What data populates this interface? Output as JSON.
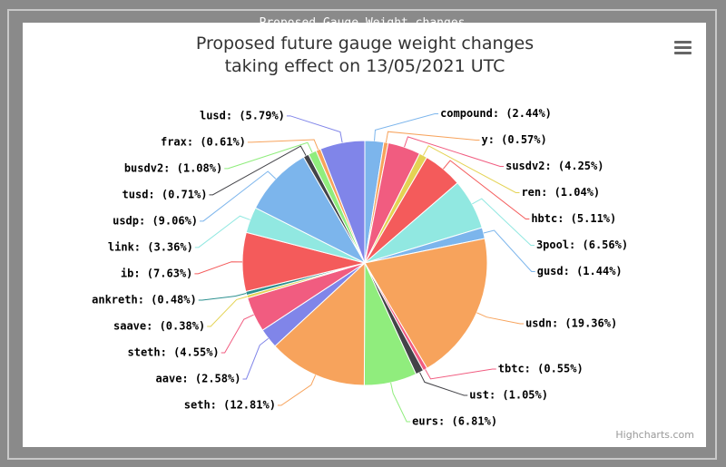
{
  "header": {
    "title": "Proposed Gauge Weight changes"
  },
  "chart_data": {
    "type": "pie",
    "title": [
      "Proposed future gauge weight changes",
      "taking effect on 13/05/2021 UTC"
    ],
    "credits": "Highcharts.com",
    "categories": [
      "compound: (2.44%)",
      "y: (0.57%)",
      "susdv2: (4.25%)",
      "ren: (1.04%)",
      "hbtc: (5.11%)",
      "3pool: (6.56%)",
      "gusd: (1.44%)",
      "usdn: (19.36%)",
      "tbtc: (0.55%)",
      "ust: (1.05%)",
      "eurs: (6.81%)",
      "seth: (12.81%)",
      "aave: (2.58%)",
      "steth: (4.55%)",
      "saave: (0.38%)",
      "ankreth: (0.48%)",
      "ib: (7.63%)",
      "link: (3.36%)",
      "usdp: (9.06%)",
      "tusd: (0.71%)",
      "busdv2: (1.08%)",
      "frax: (0.61%)",
      "lusd: (5.79%)"
    ],
    "values": [
      2.44,
      0.57,
      4.25,
      1.04,
      5.11,
      6.56,
      1.44,
      19.36,
      0.55,
      1.05,
      6.81,
      12.81,
      2.58,
      4.55,
      0.38,
      0.48,
      7.63,
      3.36,
      9.06,
      0.71,
      1.08,
      0.61,
      5.79
    ],
    "colors": [
      "#7cb5ec",
      "#f7a35c",
      "#f15c80",
      "#e4d354",
      "#f45b5b",
      "#91e8e1",
      "#7cb5ec",
      "#f7a35c",
      "#f15c80",
      "#434348",
      "#90ed7d",
      "#f7a35c",
      "#8085e9",
      "#f15c80",
      "#e4d354",
      "#2b908f",
      "#f45b5b",
      "#91e8e1",
      "#7cb5ec",
      "#434348",
      "#90ed7d",
      "#f7a35c",
      "#8085e9"
    ]
  }
}
